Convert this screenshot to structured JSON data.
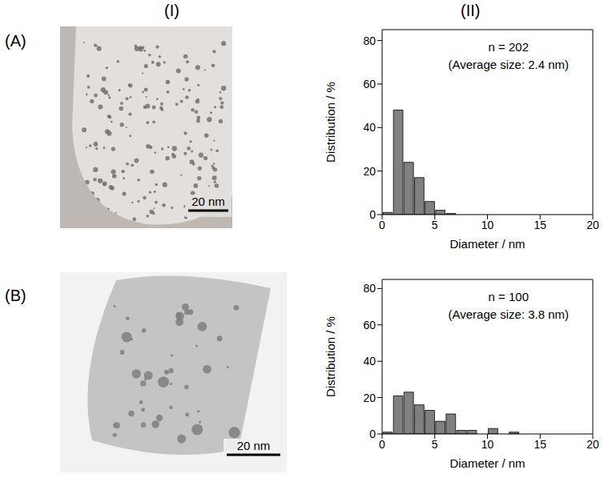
{
  "columns": [
    "(I)",
    "(II)"
  ],
  "rows": [
    {
      "label": "(A)",
      "image": {
        "scale_bar": "20 nm"
      }
    },
    {
      "label": "(B)",
      "image": {
        "scale_bar": "20 nm"
      }
    }
  ],
  "chart_data": [
    {
      "type": "histogram",
      "bins": [
        0,
        1,
        2,
        3,
        4,
        5,
        6,
        7
      ],
      "values": [
        1,
        48,
        24,
        17,
        6,
        2,
        0.5
      ],
      "color": "#808080",
      "xlabel": "Diameter / nm",
      "ylabel": "Distribution / %",
      "xlim": [
        0,
        20
      ],
      "xticks": [
        0,
        5,
        10,
        15,
        20
      ],
      "ylim": [
        0,
        85
      ],
      "yticks": [
        0,
        20,
        40,
        60,
        80
      ],
      "annotations": [
        "n = 202",
        "(Average size: 2.4 nm)"
      ]
    },
    {
      "type": "histogram",
      "bins": [
        0,
        1,
        2,
        3,
        4,
        5,
        6,
        7,
        8,
        9,
        10,
        11,
        12,
        13
      ],
      "values": [
        1,
        21,
        23,
        16,
        13,
        7,
        11,
        2,
        2,
        0,
        3,
        0,
        1
      ],
      "color": "#808080",
      "xlabel": "Diameter / nm",
      "ylabel": "Distribution / %",
      "xlim": [
        0,
        20
      ],
      "xticks": [
        0,
        5,
        10,
        15,
        20
      ],
      "ylim": [
        0,
        85
      ],
      "yticks": [
        0,
        20,
        40,
        60,
        80
      ],
      "annotations": [
        "n = 100",
        "(Average size: 3.8 nm)"
      ]
    }
  ]
}
